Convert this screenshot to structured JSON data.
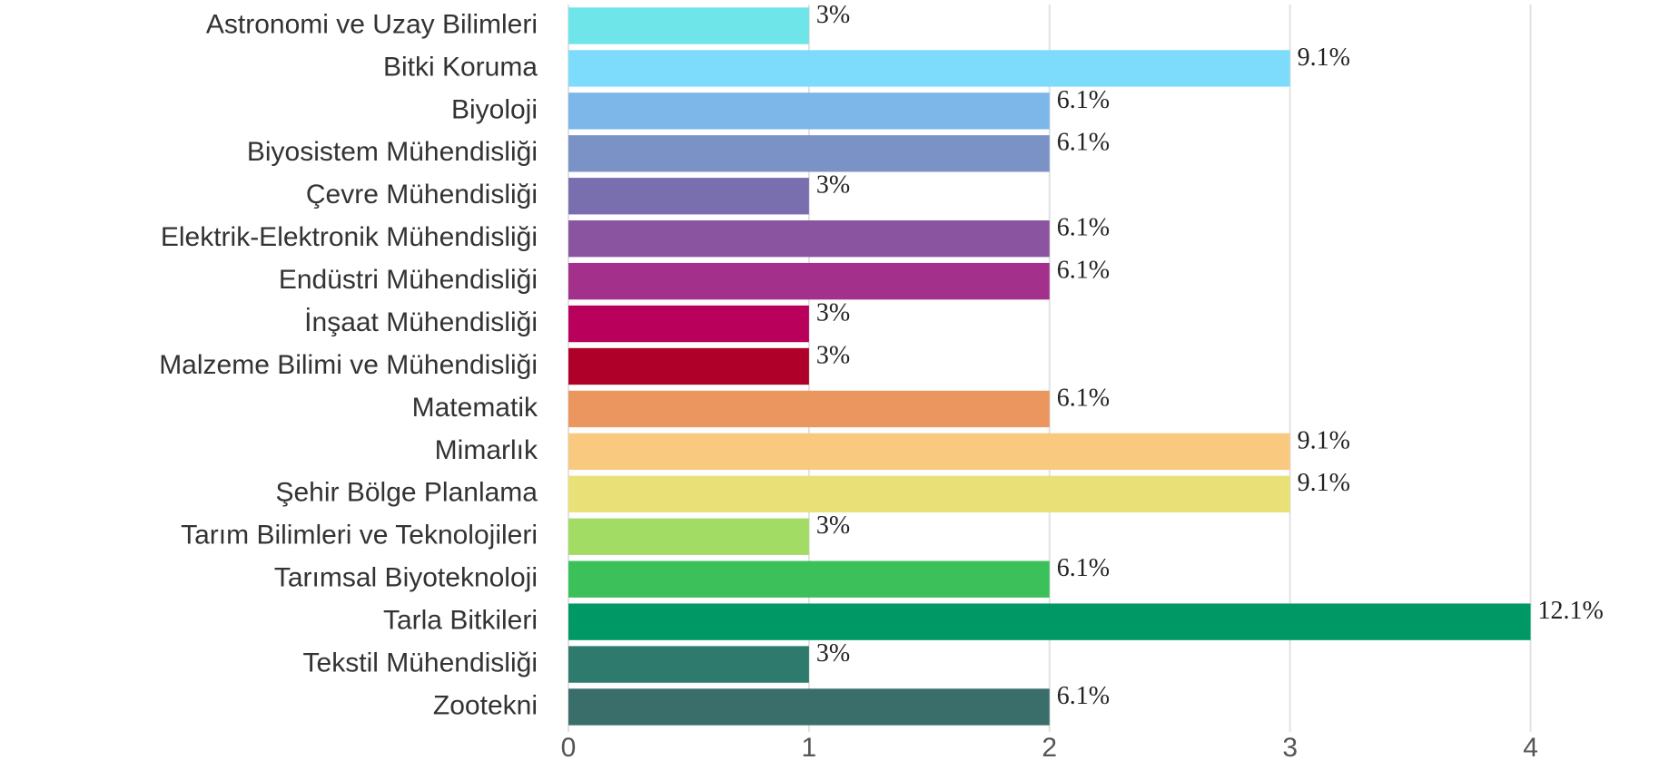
{
  "chart_data": {
    "type": "bar",
    "orientation": "horizontal",
    "categories": [
      "Astronomi ve Uzay Bilimleri",
      "Bitki Koruma",
      "Biyoloji",
      "Biyosistem Mühendisliği",
      "Çevre Mühendisliği",
      "Elektrik-Elektronik Mühendisliği",
      "Endüstri Mühendisliği",
      "İnşaat Mühendisliği",
      "Malzeme Bilimi ve Mühendisliği",
      "Matematik",
      "Mimarlık",
      "Şehir Bölge Planlama",
      "Tarım Bilimleri ve Teknolojileri",
      "Tarımsal Biyoteknoloji",
      "Tarla Bitkileri",
      "Tekstil Mühendisliği",
      "Zootekni"
    ],
    "values": [
      1,
      3,
      2,
      2,
      1,
      2,
      2,
      1,
      1,
      2,
      3,
      3,
      1,
      2,
      4,
      1,
      2
    ],
    "value_labels": [
      "3%",
      "9.1%",
      "6.1%",
      "6.1%",
      "3%",
      "6.1%",
      "6.1%",
      "3%",
      "3%",
      "6.1%",
      "9.1%",
      "9.1%",
      "3%",
      "6.1%",
      "12.1%",
      "3%",
      "6.1%"
    ],
    "colors": [
      "#6ee5e8",
      "#7ddcfb",
      "#7db6e8",
      "#7a92c6",
      "#7a6fae",
      "#8a54a0",
      "#a3308a",
      "#b9005a",
      "#ae0028",
      "#eb955f",
      "#f9c97f",
      "#e9e078",
      "#a3dc65",
      "#3cc05a",
      "#009966",
      "#2e7b6d",
      "#3a6e6b"
    ],
    "xlim": [
      0,
      4.5
    ],
    "xticks": [
      0,
      1,
      2,
      3,
      4
    ],
    "grid": true
  }
}
